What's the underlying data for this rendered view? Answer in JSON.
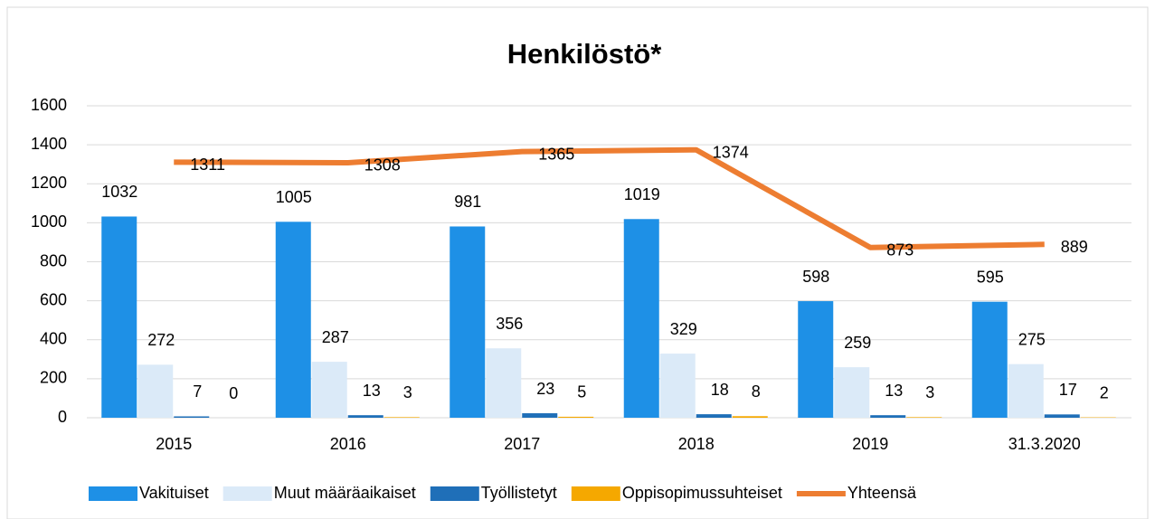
{
  "chart_data": {
    "type": "bar_line",
    "title": "Henkilöstö*",
    "categories": [
      "2015",
      "2016",
      "2017",
      "2018",
      "2019",
      "31.3.2020"
    ],
    "series": [
      {
        "name": "Vakituiset",
        "color": "#1e90e6",
        "values": [
          1032,
          1005,
          981,
          1019,
          598,
          595
        ]
      },
      {
        "name": "Muut määräaikaiset",
        "color": "#dbeaf8",
        "values": [
          272,
          287,
          356,
          329,
          259,
          275
        ]
      },
      {
        "name": "Työllistetyt",
        "color": "#1f6fb8",
        "values": [
          7,
          13,
          23,
          18,
          13,
          17
        ]
      },
      {
        "name": "Oppisopimussuhteiset",
        "color": "#f5a800",
        "values": [
          0,
          3,
          5,
          8,
          3,
          2
        ]
      },
      {
        "name": "Yhteensä",
        "color": "#ed7d31",
        "type": "line",
        "values": [
          1311,
          1308,
          1365,
          1374,
          873,
          889
        ]
      }
    ],
    "ylim": [
      0,
      1600
    ],
    "yticks": [
      0,
      200,
      400,
      600,
      800,
      1000,
      1200,
      1400,
      1600
    ],
    "grid": true,
    "legend": "bottom"
  }
}
